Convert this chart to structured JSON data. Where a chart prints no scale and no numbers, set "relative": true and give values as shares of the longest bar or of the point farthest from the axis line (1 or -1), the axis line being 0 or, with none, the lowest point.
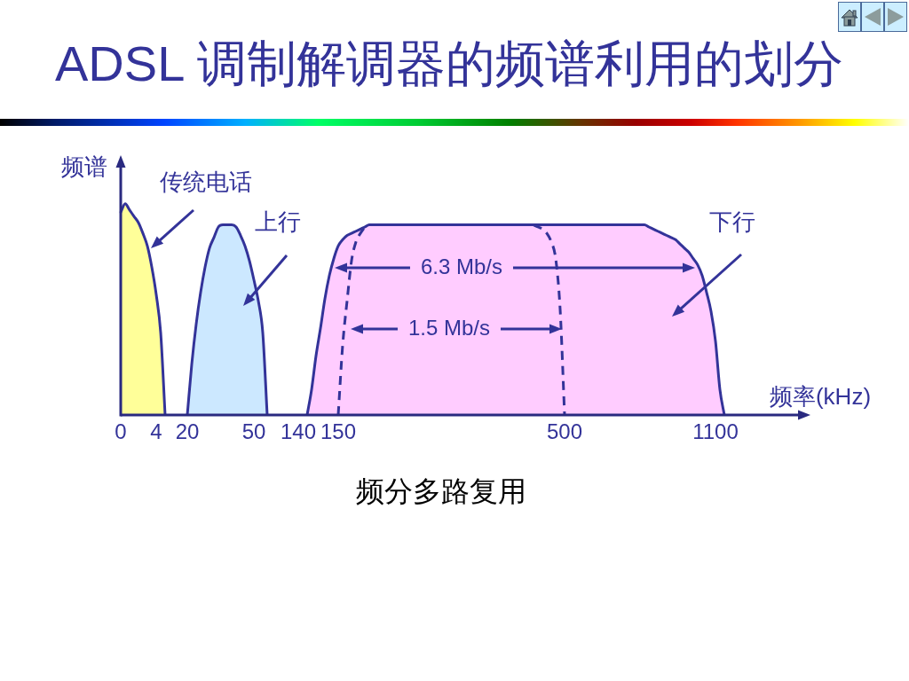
{
  "chart_data": {
    "type": "area",
    "title": "ADSL 调制解调器的频谱利用的划分",
    "xlabel": "频率(kHz)",
    "ylabel": "频谱",
    "relative": true,
    "annotations": [
      "6.3 Mb/s",
      "1.5 Mb/s",
      "频分多路复用"
    ],
    "categories": [
      "0",
      null,
      null,
      null,
      null,
      null,
      null,
      null,
      "4",
      null,
      null,
      null,
      null,
      null,
      null,
      "20",
      null,
      null,
      null,
      null,
      null,
      null,
      null,
      null,
      null,
      null,
      null,
      null,
      null,
      null,
      "50",
      null,
      null,
      null,
      null,
      null,
      null,
      null,
      null,
      null,
      "140",
      null,
      null,
      null,
      null,
      null,
      null,
      null,
      null,
      "150",
      null,
      null,
      null,
      null,
      null,
      null,
      null,
      null,
      null,
      null,
      null,
      null,
      null,
      null,
      null,
      null,
      null,
      null,
      null,
      null,
      null,
      null,
      null,
      null,
      null,
      null,
      null,
      null,
      null,
      null,
      null,
      null,
      null,
      null,
      null,
      null,
      null,
      null,
      null,
      null,
      null,
      null,
      null,
      null,
      null,
      null,
      null,
      null,
      null,
      null,
      "500",
      null,
      null,
      null,
      null,
      null,
      null,
      null,
      null,
      null,
      null,
      null,
      null,
      null,
      null,
      null,
      null,
      null,
      null,
      null,
      null,
      null,
      null,
      null,
      null,
      null,
      null,
      null,
      null,
      null,
      null,
      null,
      null,
      null,
      "1100",
      null,
      null,
      null,
      null,
      null,
      null,
      null,
      null,
      null,
      null,
      null,
      null,
      null,
      null,
      null,
      null,
      null,
      null,
      null,
      null
    ],
    "series": [
      {
        "name": "传统电话",
        "color": "#ffff99",
        "values": [
          0.96,
          1,
          0.97,
          0.94,
          0.91,
          0.86,
          0.8,
          0.7,
          0.57,
          0.39,
          0,
          null,
          null,
          null,
          null,
          null,
          null,
          null,
          null,
          null,
          null,
          null,
          null,
          null,
          null,
          null,
          null,
          null,
          null,
          null,
          null,
          null,
          null,
          null,
          null,
          null,
          null,
          null,
          null,
          null,
          null,
          null,
          null,
          null,
          null,
          null,
          null,
          null,
          null,
          null,
          null,
          null,
          null,
          null,
          null,
          null,
          null,
          null,
          null,
          null,
          null,
          null,
          null,
          null,
          null,
          null,
          null,
          null,
          null,
          null,
          null,
          null,
          null,
          null,
          null,
          null,
          null,
          null,
          null,
          null,
          null,
          null,
          null,
          null,
          null,
          null,
          null,
          null,
          null,
          null,
          null,
          null,
          null,
          null,
          null,
          null,
          null,
          null,
          null,
          null,
          null,
          null,
          null,
          null,
          null,
          null,
          null,
          null,
          null,
          null,
          null,
          null,
          null,
          null,
          null,
          null,
          null,
          null,
          null,
          null,
          null,
          null,
          null,
          null,
          null,
          null,
          null,
          null,
          null,
          null,
          null,
          null,
          null,
          null,
          null,
          null,
          null,
          null,
          null,
          null,
          null,
          null,
          null,
          null,
          null,
          null,
          null,
          null,
          null,
          null,
          null,
          null,
          null,
          null,
          null
        ]
      },
      {
        "name": "上行",
        "color": "#cce8ff",
        "values": [
          null,
          null,
          null,
          null,
          null,
          null,
          null,
          null,
          null,
          null,
          null,
          null,
          null,
          null,
          null,
          0,
          0.24,
          0.43,
          0.58,
          0.7,
          0.79,
          0.84,
          0.89,
          0.9,
          0.9,
          0.9,
          0.89,
          0.85,
          0.8,
          0.73,
          0.64,
          0.54,
          0.39,
          0,
          null,
          null,
          null,
          null,
          null,
          null,
          null,
          null,
          null,
          null,
          null,
          null,
          null,
          null,
          null,
          null,
          null,
          null,
          null,
          null,
          null,
          null,
          null,
          null,
          null,
          null,
          null,
          null,
          null,
          null,
          null,
          null,
          null,
          null,
          null,
          null,
          null,
          null,
          null,
          null,
          null,
          null,
          null,
          null,
          null,
          null,
          null,
          null,
          null,
          null,
          null,
          null,
          null,
          null,
          null,
          null,
          null,
          null,
          null,
          null,
          null,
          null,
          null,
          null,
          null,
          null,
          null,
          null,
          null,
          null,
          null,
          null,
          null,
          null,
          null,
          null,
          null,
          null,
          null,
          null,
          null,
          null,
          null,
          null,
          null,
          null,
          null,
          null,
          null,
          null,
          null,
          null,
          null,
          null,
          null,
          null,
          null,
          null,
          null,
          null,
          null,
          null,
          null,
          null,
          null,
          null,
          null,
          null,
          null,
          null,
          null,
          null,
          null,
          null,
          null,
          null,
          null,
          null,
          null,
          null,
          null
        ]
      },
      {
        "name": "下行",
        "color": "#ffccff",
        "values": [
          null,
          null,
          null,
          null,
          null,
          null,
          null,
          null,
          null,
          null,
          null,
          null,
          null,
          null,
          null,
          null,
          null,
          null,
          null,
          null,
          null,
          null,
          null,
          null,
          null,
          null,
          null,
          null,
          null,
          null,
          null,
          null,
          null,
          null,
          null,
          null,
          null,
          null,
          null,
          null,
          null,
          null,
          0,
          0.12,
          0.28,
          0.41,
          0.55,
          0.66,
          0.74,
          0.8,
          0.83,
          0.85,
          0.86,
          0.87,
          0.88,
          0.89,
          0.9,
          0.9,
          0.9,
          0.9,
          0.9,
          0.9,
          0.9,
          0.9,
          0.9,
          0.9,
          0.9,
          0.9,
          0.9,
          0.9,
          0.9,
          0.9,
          0.9,
          0.9,
          0.9,
          0.9,
          0.9,
          0.9,
          0.9,
          0.9,
          0.9,
          0.9,
          0.9,
          0.9,
          0.9,
          0.9,
          0.9,
          0.9,
          0.9,
          0.9,
          0.9,
          0.9,
          0.9,
          0.9,
          0.9,
          0.9,
          0.9,
          0.9,
          0.9,
          0.9,
          0.9,
          0.9,
          0.9,
          0.9,
          0.9,
          0.9,
          0.9,
          0.9,
          0.9,
          0.9,
          0.9,
          0.9,
          0.9,
          0.9,
          0.9,
          0.9,
          0.9,
          0.9,
          0.9,
          0.89,
          0.88,
          0.87,
          0.86,
          0.85,
          0.84,
          0.83,
          0.81,
          0.79,
          0.77,
          0.74,
          0.71,
          0.66,
          0.58,
          0.49,
          0.35,
          0.12,
          0,
          null,
          null,
          null,
          null,
          null,
          null,
          null,
          null,
          null,
          null,
          null,
          null,
          null,
          null,
          null,
          null,
          null,
          null
        ]
      },
      {
        "type": "line",
        "line_style": "dashed",
        "color": "#333399",
        "values": [
          null,
          null,
          null,
          null,
          null,
          null,
          null,
          null,
          null,
          null,
          null,
          null,
          null,
          null,
          null,
          null,
          null,
          null,
          null,
          null,
          null,
          null,
          null,
          null,
          null,
          null,
          null,
          null,
          null,
          null,
          null,
          null,
          null,
          null,
          null,
          null,
          null,
          null,
          null,
          null,
          null,
          null,
          null,
          null,
          null,
          null,
          null,
          null,
          null,
          0,
          0.33,
          0.54,
          0.73,
          0.82,
          0.86,
          0.89,
          null,
          null,
          null,
          null,
          null,
          null,
          null,
          null,
          null,
          null,
          null,
          null,
          null,
          null,
          null,
          null,
          null,
          null,
          null,
          null,
          null,
          null,
          null,
          null,
          null,
          null,
          null,
          null,
          null,
          null,
          null,
          null,
          null,
          null,
          null,
          null,
          null,
          0.9,
          0.89,
          0.88,
          0.86,
          0.82,
          0.74,
          0.5,
          0,
          null,
          null,
          null,
          null,
          null,
          null,
          null,
          null,
          null,
          null,
          null,
          null,
          null,
          null,
          null,
          null,
          null,
          null,
          null,
          null,
          null,
          null,
          null,
          null,
          null,
          null,
          null,
          null,
          null,
          null,
          null,
          null,
          null,
          null,
          null,
          null,
          null,
          null,
          null,
          null,
          null,
          null,
          null,
          null,
          null,
          null,
          null,
          null,
          null,
          null,
          null,
          null,
          null,
          null
        ]
      }
    ]
  }
}
